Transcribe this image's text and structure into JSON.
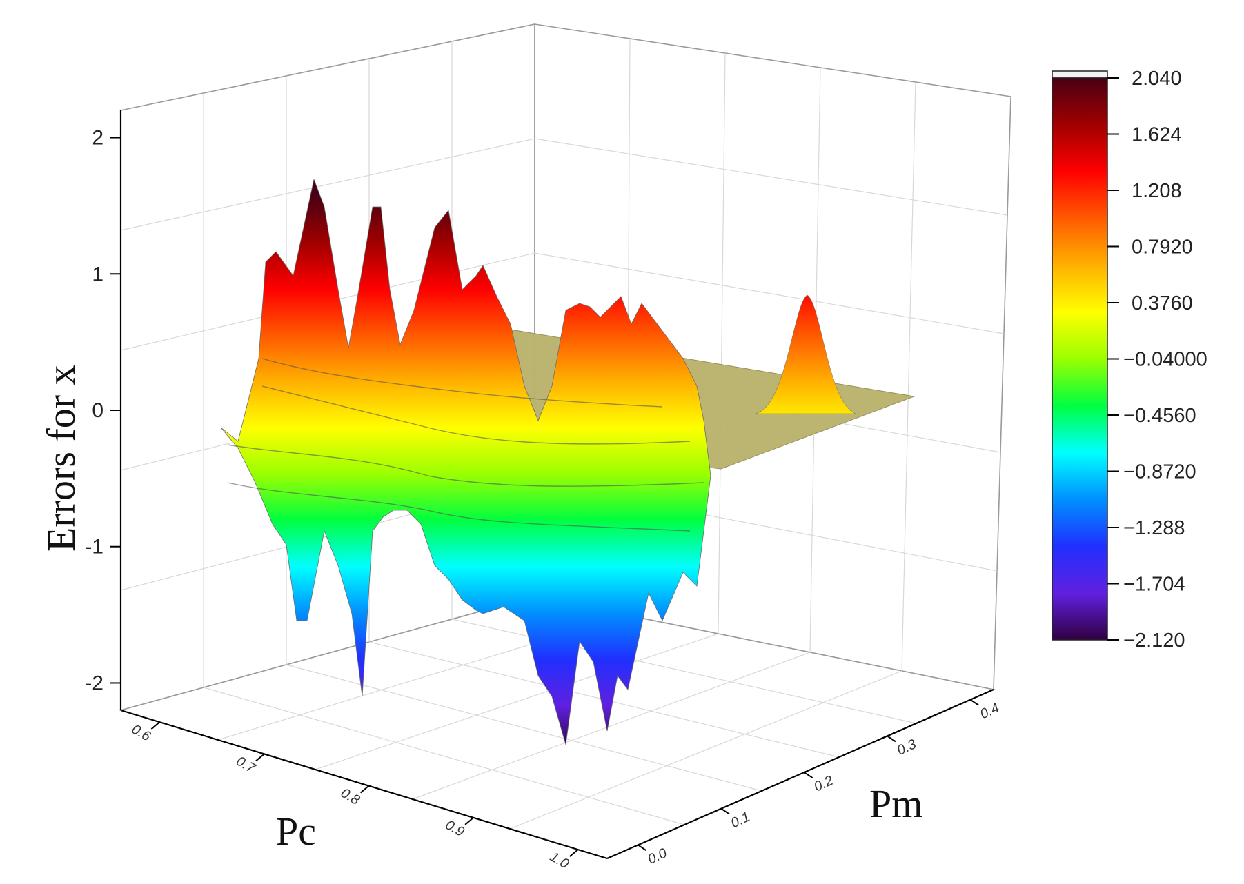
{
  "chart_data": {
    "type": "surface3d",
    "title": "",
    "axes": {
      "x": {
        "label": "Pc",
        "ticks": [
          "0.6",
          "0.7",
          "0.8",
          "0.9",
          "1.0"
        ],
        "range": [
          0.6,
          1.0
        ]
      },
      "y": {
        "label": "Pm",
        "ticks": [
          "0.0",
          "0.1",
          "0.2",
          "0.3",
          "0.4"
        ],
        "range": [
          0.0,
          0.4
        ]
      },
      "z": {
        "label": "Errors for x",
        "label_var": "x",
        "ticks": [
          "-2",
          "-1",
          "0",
          "1",
          "2"
        ],
        "range": [
          -2.2,
          2.2
        ]
      }
    },
    "colorbar": {
      "labels": [
        "2.040",
        "1.624",
        "1.208",
        "0.7920",
        "0.3760",
        "-0.04000",
        "-0.4560",
        "-0.8720",
        "-1.288",
        "-1.704",
        "-2.120"
      ],
      "min": -2.12,
      "max": 2.04,
      "colors": [
        "#4a0014",
        "#a00000",
        "#ff0000",
        "#ff5a00",
        "#ffb000",
        "#ffff00",
        "#9aff00",
        "#00ff40",
        "#00ffff",
        "#0090ff",
        "#2030ff",
        "#6020e0",
        "#300040"
      ]
    },
    "surface_features": [
      {
        "pc": 0.66,
        "pm": 0.02,
        "value": 1.2
      },
      {
        "pc": 0.7,
        "pm": 0.03,
        "value": 1.85
      },
      {
        "pc": 0.74,
        "pm": 0.04,
        "value": 1.7
      },
      {
        "pc": 0.78,
        "pm": 0.04,
        "value": 1.5
      },
      {
        "pc": 0.82,
        "pm": 0.05,
        "value": 1.1
      },
      {
        "pc": 0.89,
        "pm": 0.08,
        "value": 1.0
      },
      {
        "pc": 0.93,
        "pm": 0.1,
        "value": 0.9
      },
      {
        "pc": 0.9,
        "pm": 0.3,
        "value": 0.6
      },
      {
        "pc": 0.72,
        "pm": 0.02,
        "value": -1.7
      },
      {
        "pc": 0.78,
        "pm": 0.03,
        "value": -2.1
      },
      {
        "pc": 0.88,
        "pm": 0.05,
        "value": -2.1
      },
      {
        "pc": 0.95,
        "pm": 0.07,
        "value": -1.9
      }
    ]
  }
}
